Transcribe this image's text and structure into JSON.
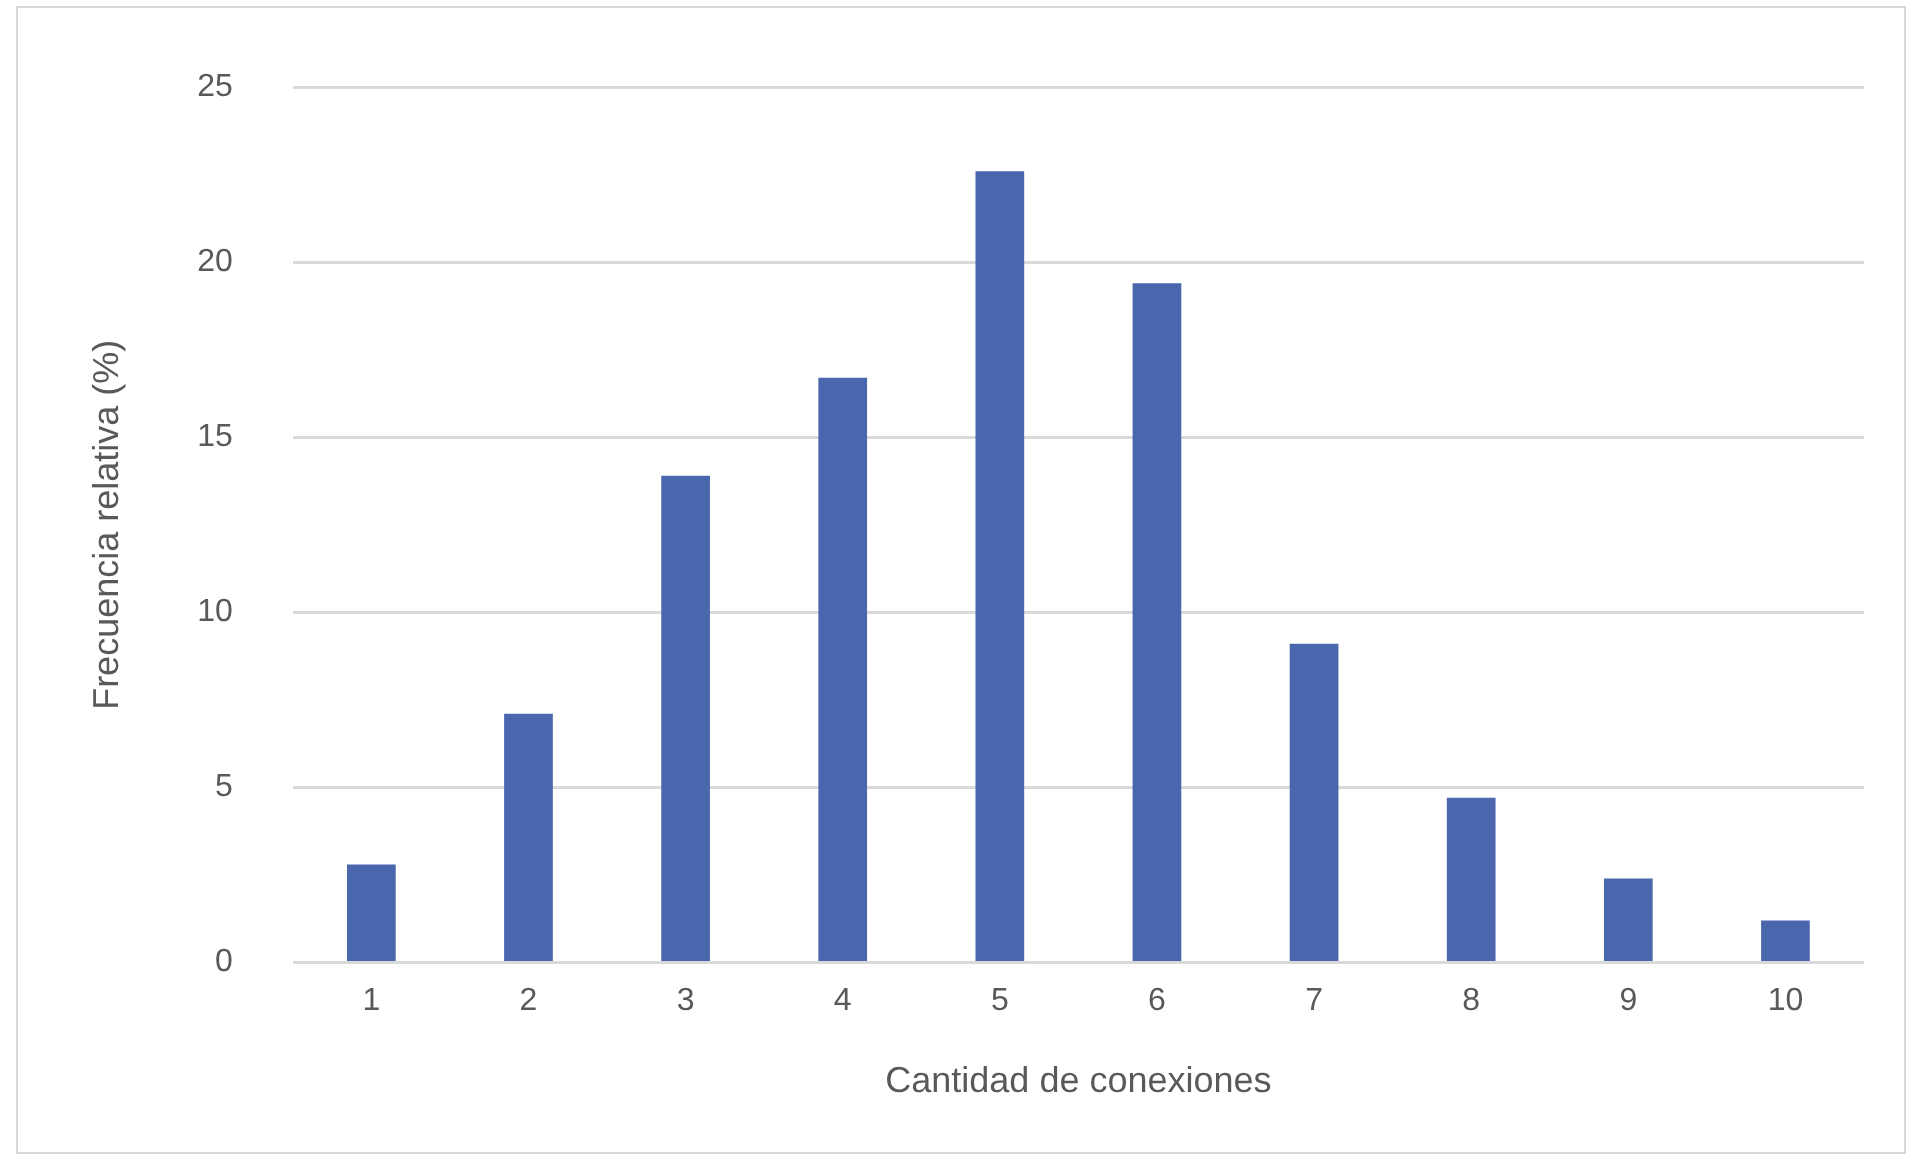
{
  "chart_data": {
    "type": "bar",
    "xlabel": "Cantidad de conexiones",
    "ylabel": "Frecuencia relativa (%)",
    "categories": [
      "1",
      "2",
      "3",
      "4",
      "5",
      "6",
      "7",
      "8",
      "9",
      "10"
    ],
    "values": [
      2.8,
      7.1,
      13.9,
      16.7,
      22.6,
      19.4,
      9.1,
      4.7,
      2.4,
      1.2
    ],
    "color": "#4a67ad",
    "ylim": [
      0,
      25
    ],
    "yticks": [
      0,
      5,
      10,
      15,
      20,
      25
    ],
    "grid": "y",
    "legend": false
  }
}
